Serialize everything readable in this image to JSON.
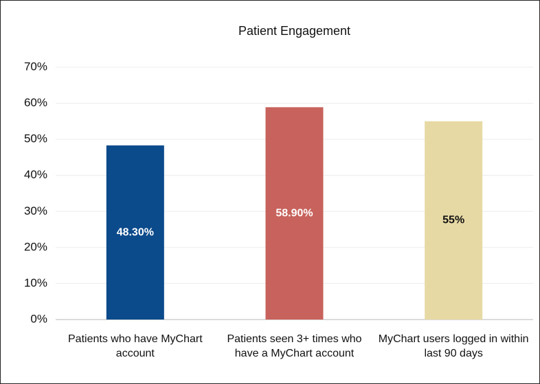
{
  "chart_data": {
    "type": "bar",
    "title": "Patient Engagement",
    "categories": [
      "Patients who have MyChart account",
      "Patients seen 3+ times who have a MyChart account",
      "MyChart users logged in within last 90 days"
    ],
    "values": [
      48.3,
      58.9,
      55
    ],
    "value_labels": [
      "48.30%",
      "58.90%",
      "55%"
    ],
    "colors": [
      "#0b4a8b",
      "#c8625c",
      "#e7d9a4"
    ],
    "value_label_colors": [
      "#ffffff",
      "#ffffff",
      "#111111"
    ],
    "ylim": [
      0,
      70
    ],
    "yticks": [
      {
        "value": 0,
        "label": "0%"
      },
      {
        "value": 10,
        "label": "10%"
      },
      {
        "value": 20,
        "label": "20%"
      },
      {
        "value": 30,
        "label": "30%"
      },
      {
        "value": 40,
        "label": "40%"
      },
      {
        "value": 50,
        "label": "50%"
      },
      {
        "value": 60,
        "label": "60%"
      },
      {
        "value": 70,
        "label": "70%"
      }
    ],
    "grid": true
  }
}
